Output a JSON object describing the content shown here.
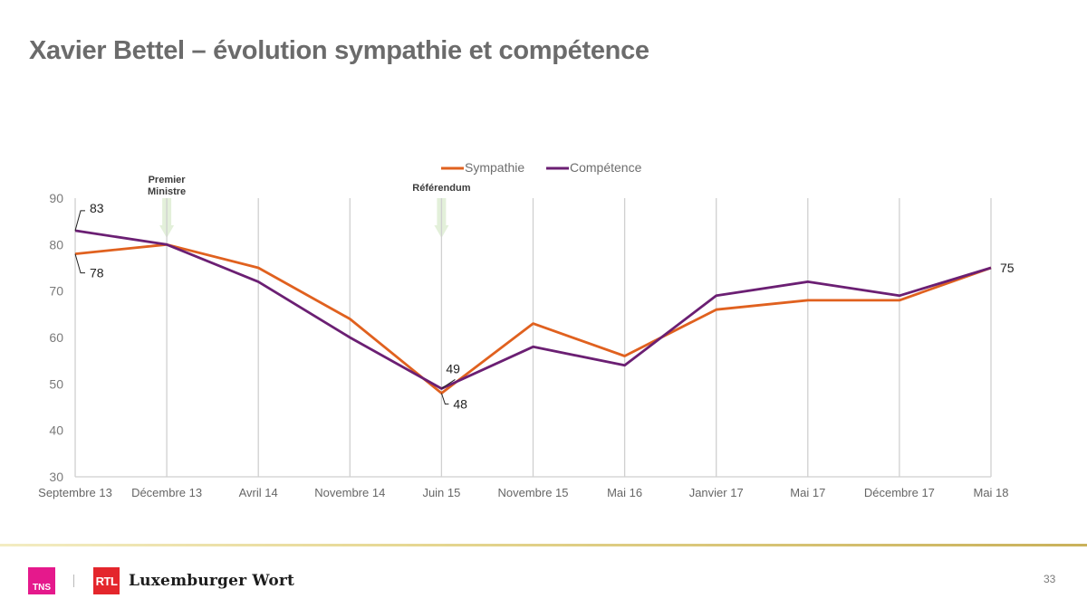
{
  "slide": {
    "title": "Xavier Bettel – évolution sympathie et compétence",
    "page_number": "33",
    "footer": {
      "tns_label": "TNS",
      "rtl_label": "RTL",
      "wort_label": "Luxemburger Wort"
    }
  },
  "chart_data": {
    "type": "line",
    "title": "",
    "xlabel": "",
    "ylabel": "",
    "categories": [
      "Septembre 13",
      "Décembre 13",
      "Avril 14",
      "Novembre 14",
      "Juin 15",
      "Novembre 15",
      "Mai 16",
      "Janvier 17",
      "Mai 17",
      "Décembre 17",
      "Mai 18"
    ],
    "series": [
      {
        "name": "Sympathie",
        "color": "#e0611f",
        "values": [
          78,
          80,
          75,
          64,
          48,
          63,
          56,
          66,
          68,
          68,
          75
        ]
      },
      {
        "name": "Compétence",
        "color": "#6b1f73",
        "values": [
          83,
          80,
          72,
          60,
          49,
          58,
          54,
          69,
          72,
          69,
          75
        ]
      }
    ],
    "ylim": [
      30,
      90
    ],
    "yticks": [
      30,
      40,
      50,
      60,
      70,
      80,
      90
    ],
    "grid": "vertical",
    "legend": "top-center",
    "data_labels": [
      {
        "series": "Compétence",
        "index": 0,
        "text": "83"
      },
      {
        "series": "Sympathie",
        "index": 0,
        "text": "78"
      },
      {
        "series": "Compétence",
        "index": 4,
        "text": "49"
      },
      {
        "series": "Sympathie",
        "index": 4,
        "text": "48"
      },
      {
        "series": "Compétence",
        "index": 10,
        "text": "75"
      }
    ],
    "annotations": [
      {
        "category": "Décembre 13",
        "lines": [
          "Premier",
          "Ministre"
        ],
        "marker": "down-arrow"
      },
      {
        "category": "Juin 15",
        "lines": [
          "Référendum"
        ],
        "marker": "down-arrow"
      }
    ]
  }
}
